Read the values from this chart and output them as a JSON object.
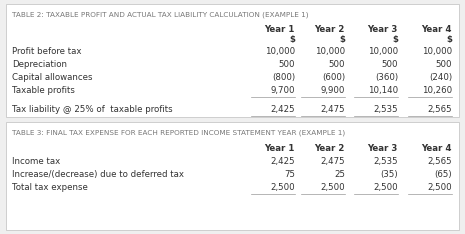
{
  "table2_title": "TABLE 2: TAXABLE PROFIT AND ACTUAL TAX LIABILITY CALCULATION (EXAMPLE 1)",
  "table3_title": "TABLE 3: FINAL TAX EXPENSE FOR EACH REPORTED INCOME STATEMENT YEAR (EXAMPLE 1)",
  "years": [
    "Year 1",
    "Year 2",
    "Year 3",
    "Year 4"
  ],
  "table2_rows": [
    {
      "label": "Profit before tax",
      "values": [
        "10,000",
        "10,000",
        "10,000",
        "10,000"
      ],
      "underline": false
    },
    {
      "label": "Depreciation",
      "values": [
        "500",
        "500",
        "500",
        "500"
      ],
      "underline": false
    },
    {
      "label": "Capital allowances",
      "values": [
        "(800)",
        "(600)",
        "(360)",
        "(240)"
      ],
      "underline": false
    },
    {
      "label": "Taxable profits",
      "values": [
        "9,700",
        "9,900",
        "10,140",
        "10,260"
      ],
      "underline": true
    }
  ],
  "table2_tax_row": {
    "label": "Tax liability @ 25% of  taxable profits",
    "values": [
      "2,425",
      "2,475",
      "2,535",
      "2,565"
    ],
    "underline": true
  },
  "table3_rows": [
    {
      "label": "Income tax",
      "values": [
        "2,425",
        "2,475",
        "2,535",
        "2,565"
      ],
      "underline": false
    },
    {
      "label": "Increase/(decrease) due to deferred tax",
      "values": [
        "75",
        "25",
        "(35)",
        "(65)"
      ],
      "underline": false
    },
    {
      "label": "Total tax expense",
      "values": [
        "2,500",
        "2,500",
        "2,500",
        "2,500"
      ],
      "underline": true
    }
  ],
  "bg_color": "#efefef",
  "table_bg": "#ffffff",
  "border_color": "#c8c8c8",
  "title_color": "#777777",
  "text_color": "#333333",
  "title_fontsize": 5.2,
  "header_fontsize": 6.2,
  "data_fontsize": 6.2
}
